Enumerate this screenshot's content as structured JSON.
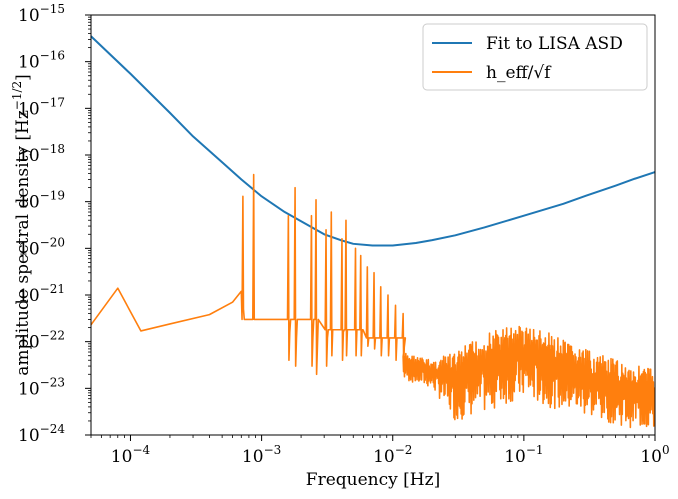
{
  "chart_data": {
    "type": "line",
    "title": "",
    "xlabel": "Frequency [Hz]",
    "ylabel": "amplitude spectral density [Hz^{-1/2}]",
    "ylabel_main": "amplitude spectral density [Hz",
    "ylabel_exp": "−1/2",
    "ylabel_close": "]",
    "xscale": "log",
    "yscale": "log",
    "xlim": [
      5e-05,
      1
    ],
    "ylim": [
      1e-24,
      1e-15
    ],
    "legend_location": "top-right",
    "x_ticks": [
      {
        "value": 0.0001,
        "base": "10",
        "exp": "−4"
      },
      {
        "value": 0.001,
        "base": "10",
        "exp": "−3"
      },
      {
        "value": 0.01,
        "base": "10",
        "exp": "−2"
      },
      {
        "value": 0.1,
        "base": "10",
        "exp": "−1"
      },
      {
        "value": 1,
        "base": "10",
        "exp": "0"
      }
    ],
    "y_ticks": [
      {
        "value": 1e-24,
        "base": "10",
        "exp": "−24"
      },
      {
        "value": 1e-23,
        "base": "10",
        "exp": "−23"
      },
      {
        "value": 1e-22,
        "base": "10",
        "exp": "−22"
      },
      {
        "value": 1e-21,
        "base": "10",
        "exp": "−21"
      },
      {
        "value": 1e-20,
        "base": "10",
        "exp": "−20"
      },
      {
        "value": 1e-19,
        "base": "10",
        "exp": "−19"
      },
      {
        "value": 1e-18,
        "base": "10",
        "exp": "−18"
      },
      {
        "value": 1e-17,
        "base": "10",
        "exp": "−17"
      },
      {
        "value": 1e-16,
        "base": "10",
        "exp": "−16"
      },
      {
        "value": 1e-15,
        "base": "10",
        "exp": "−15"
      }
    ],
    "series": [
      {
        "name": "Fit to LISA ASD",
        "color": "#1f77b4",
        "points": [
          [
            5e-05,
            3.5e-16
          ],
          [
            0.0001,
            5.5e-17
          ],
          [
            0.0002,
            8e-18
          ],
          [
            0.0003,
            2.5e-18
          ],
          [
            0.0005,
            7e-19
          ],
          [
            0.0007,
            3e-19
          ],
          [
            0.001,
            1.3e-19
          ],
          [
            0.0015,
            6e-20
          ],
          [
            0.002,
            3.8e-20
          ],
          [
            0.003,
            2e-20
          ],
          [
            0.004,
            1.5e-20
          ],
          [
            0.005,
            1.25e-20
          ],
          [
            0.007,
            1.15e-20
          ],
          [
            0.01,
            1.15e-20
          ],
          [
            0.015,
            1.3e-20
          ],
          [
            0.02,
            1.5e-20
          ],
          [
            0.03,
            1.9e-20
          ],
          [
            0.05,
            2.8e-20
          ],
          [
            0.1,
            5e-20
          ],
          [
            0.2,
            9e-20
          ],
          [
            0.3,
            1.35e-19
          ],
          [
            0.5,
            2.2e-19
          ],
          [
            0.7,
            3.1e-19
          ],
          [
            1,
            4.3e-19
          ]
        ]
      },
      {
        "name": "h_eff/√f",
        "color": "#ff7f0e",
        "points": [
          [
            5e-05,
            2.3e-22
          ],
          [
            8e-05,
            1.4e-21
          ],
          [
            0.00012,
            1.7e-22
          ],
          [
            0.0002,
            2.4e-22
          ],
          [
            0.0004,
            3.8e-22
          ],
          [
            0.0006,
            7e-22
          ],
          [
            0.0007,
            1.2e-21
          ]
        ],
        "peaks": [
          {
            "f": 0.00072,
            "h": 1.3e-19,
            "d": 5e-22
          },
          {
            "f": 0.00087,
            "h": 3.8e-19,
            "d": 3e-22
          },
          {
            "f": 0.0016,
            "h": 5e-20,
            "d": 4e-23
          },
          {
            "f": 0.0018,
            "h": 2e-19,
            "d": 3e-23
          },
          {
            "f": 0.0024,
            "h": 5e-20,
            "d": 3e-23
          },
          {
            "f": 0.0026,
            "h": 1.1e-19,
            "d": 2e-23
          },
          {
            "f": 0.0031,
            "h": 2.5e-20,
            "d": 3e-23
          },
          {
            "f": 0.0034,
            "h": 6e-20,
            "d": 5e-23
          },
          {
            "f": 0.0041,
            "h": 1.6e-20,
            "d": 4e-23
          },
          {
            "f": 0.0044,
            "h": 4e-20,
            "d": 5e-23
          },
          {
            "f": 0.0052,
            "h": 1e-20,
            "d": 5e-23
          },
          {
            "f": 0.0057,
            "h": 7e-21,
            "d": 5e-23
          },
          {
            "f": 0.0064,
            "h": 4e-21,
            "d": 8e-23
          },
          {
            "f": 0.0072,
            "h": 3e-21,
            "d": 7e-23
          },
          {
            "f": 0.0081,
            "h": 1.5e-21,
            "d": 5e-23
          },
          {
            "f": 0.0092,
            "h": 1e-21,
            "d": 5e-23
          },
          {
            "f": 0.0105,
            "h": 6e-22,
            "d": 4e-23
          },
          {
            "f": 0.012,
            "h": 4e-22,
            "d": 3e-23
          }
        ],
        "noise_envelope": [
          [
            0.012,
            6e-23,
            1.5e-23
          ],
          [
            0.02,
            4e-23,
            1e-23
          ],
          [
            0.03,
            6e-23,
            2e-24
          ],
          [
            0.05,
            1.5e-22,
            3e-24
          ],
          [
            0.08,
            2.3e-22,
            5e-24
          ],
          [
            0.1,
            2.4e-22,
            6e-24
          ],
          [
            0.15,
            1.6e-22,
            4e-24
          ],
          [
            0.25,
            8e-23,
            3e-24
          ],
          [
            0.4,
            5e-23,
            2e-24
          ],
          [
            0.6,
            3.5e-23,
            1.5e-24
          ],
          [
            1,
            2.7e-23,
            1.2e-24
          ]
        ]
      }
    ]
  }
}
